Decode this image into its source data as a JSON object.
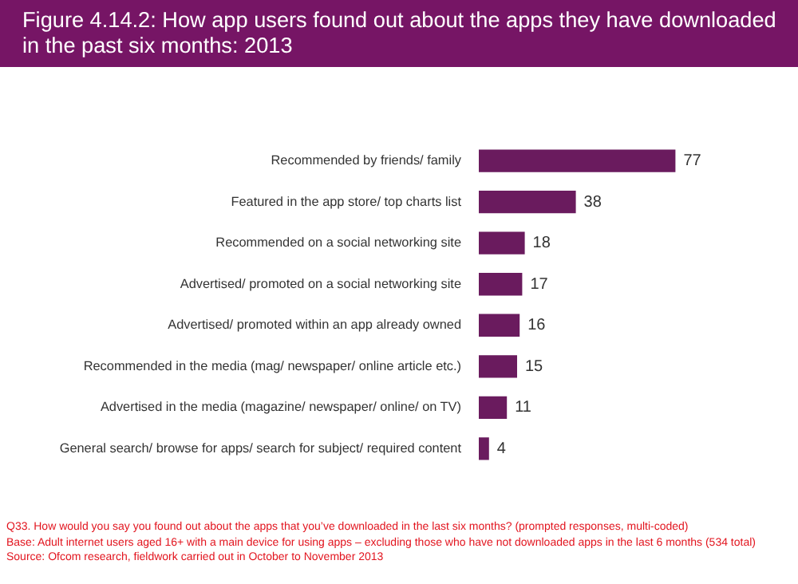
{
  "chart_data": {
    "type": "bar",
    "orientation": "horizontal",
    "title": "Figure 4.14.2: How app users found out about the apps they have downloaded in the past six months: 2013",
    "categories": [
      "Recommended by friends/ family",
      "Featured in the app store/ top charts list",
      "Recommended on a social networking site",
      "Advertised/ promoted on a social networking site",
      "Advertised/ promoted within an app already owned",
      "Recommended in the media (mag/ newspaper/ online article etc.)",
      "Advertised in the media (magazine/ newspaper/ online/ on TV)",
      "General search/ browse for apps/ search for subject/ required content"
    ],
    "values": [
      77,
      38,
      18,
      17,
      16,
      15,
      11,
      4
    ],
    "color": "#6a1b5e",
    "data_labels": true,
    "legend": false,
    "annotations": [
      "Q33. How would you say you found out about the apps that you’ve downloaded in the last six months? (prompted responses, multi-coded)",
      "Base: Adult internet users aged 16+ with a main device for using apps – excluding those who have not downloaded apps in the last 6 months (534 total)",
      "Source: Ofcom research, fieldwork carried out in October to November 2013"
    ]
  }
}
